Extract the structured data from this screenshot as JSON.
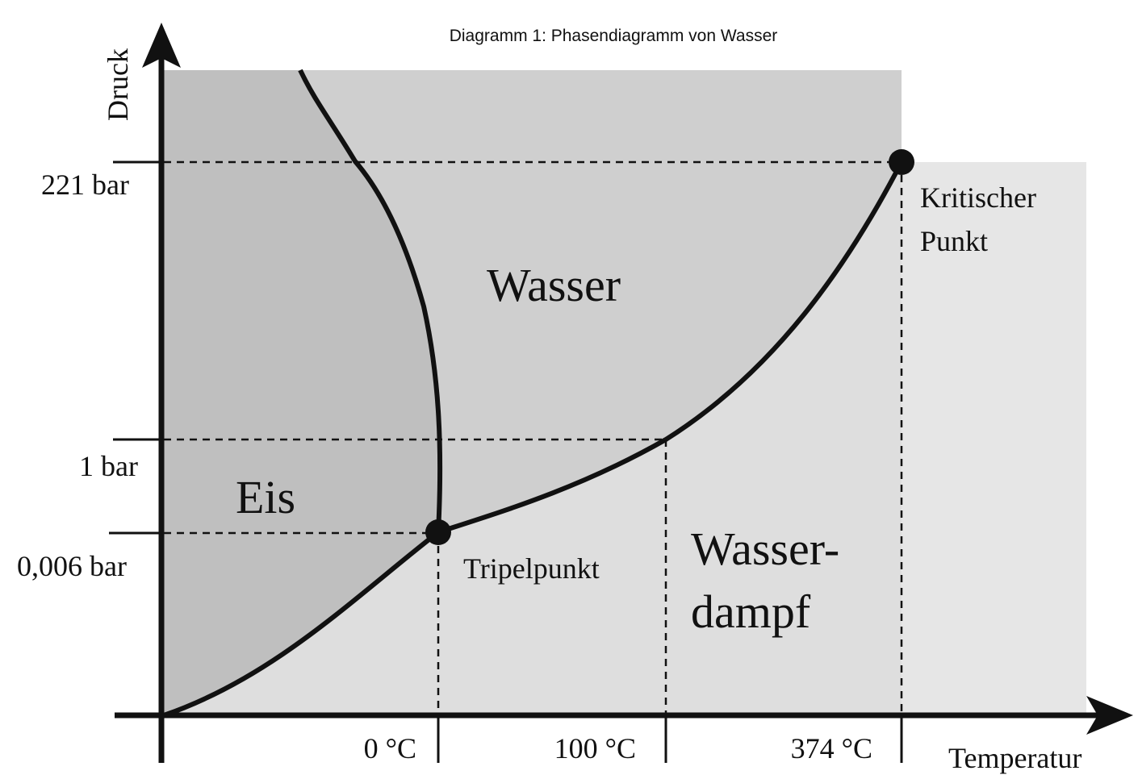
{
  "title": "Diagramm 1: Phasendiagramm von Wasser",
  "axes": {
    "y_label": "Druck",
    "x_label": "Temperatur"
  },
  "pressure_ticks": [
    "221 bar",
    "1 bar",
    "0,006 bar"
  ],
  "temperature_ticks": [
    "0 °C",
    "100 °C",
    "374 °C"
  ],
  "regions": {
    "ice": "Eis",
    "water": "Wasser",
    "vapor_line1": "Wasser-",
    "vapor_line2": "dampf"
  },
  "points": {
    "triple": "Tripelpunkt",
    "critical_line1": "Kritischer",
    "critical_line2": "Punkt"
  },
  "colors": {
    "ice_region": "#bfbfbf",
    "water_region": "#cfcfcf",
    "vapor_region": "#dedede",
    "supercritical_region": "#e6e6e6",
    "lines": "#111111"
  }
}
